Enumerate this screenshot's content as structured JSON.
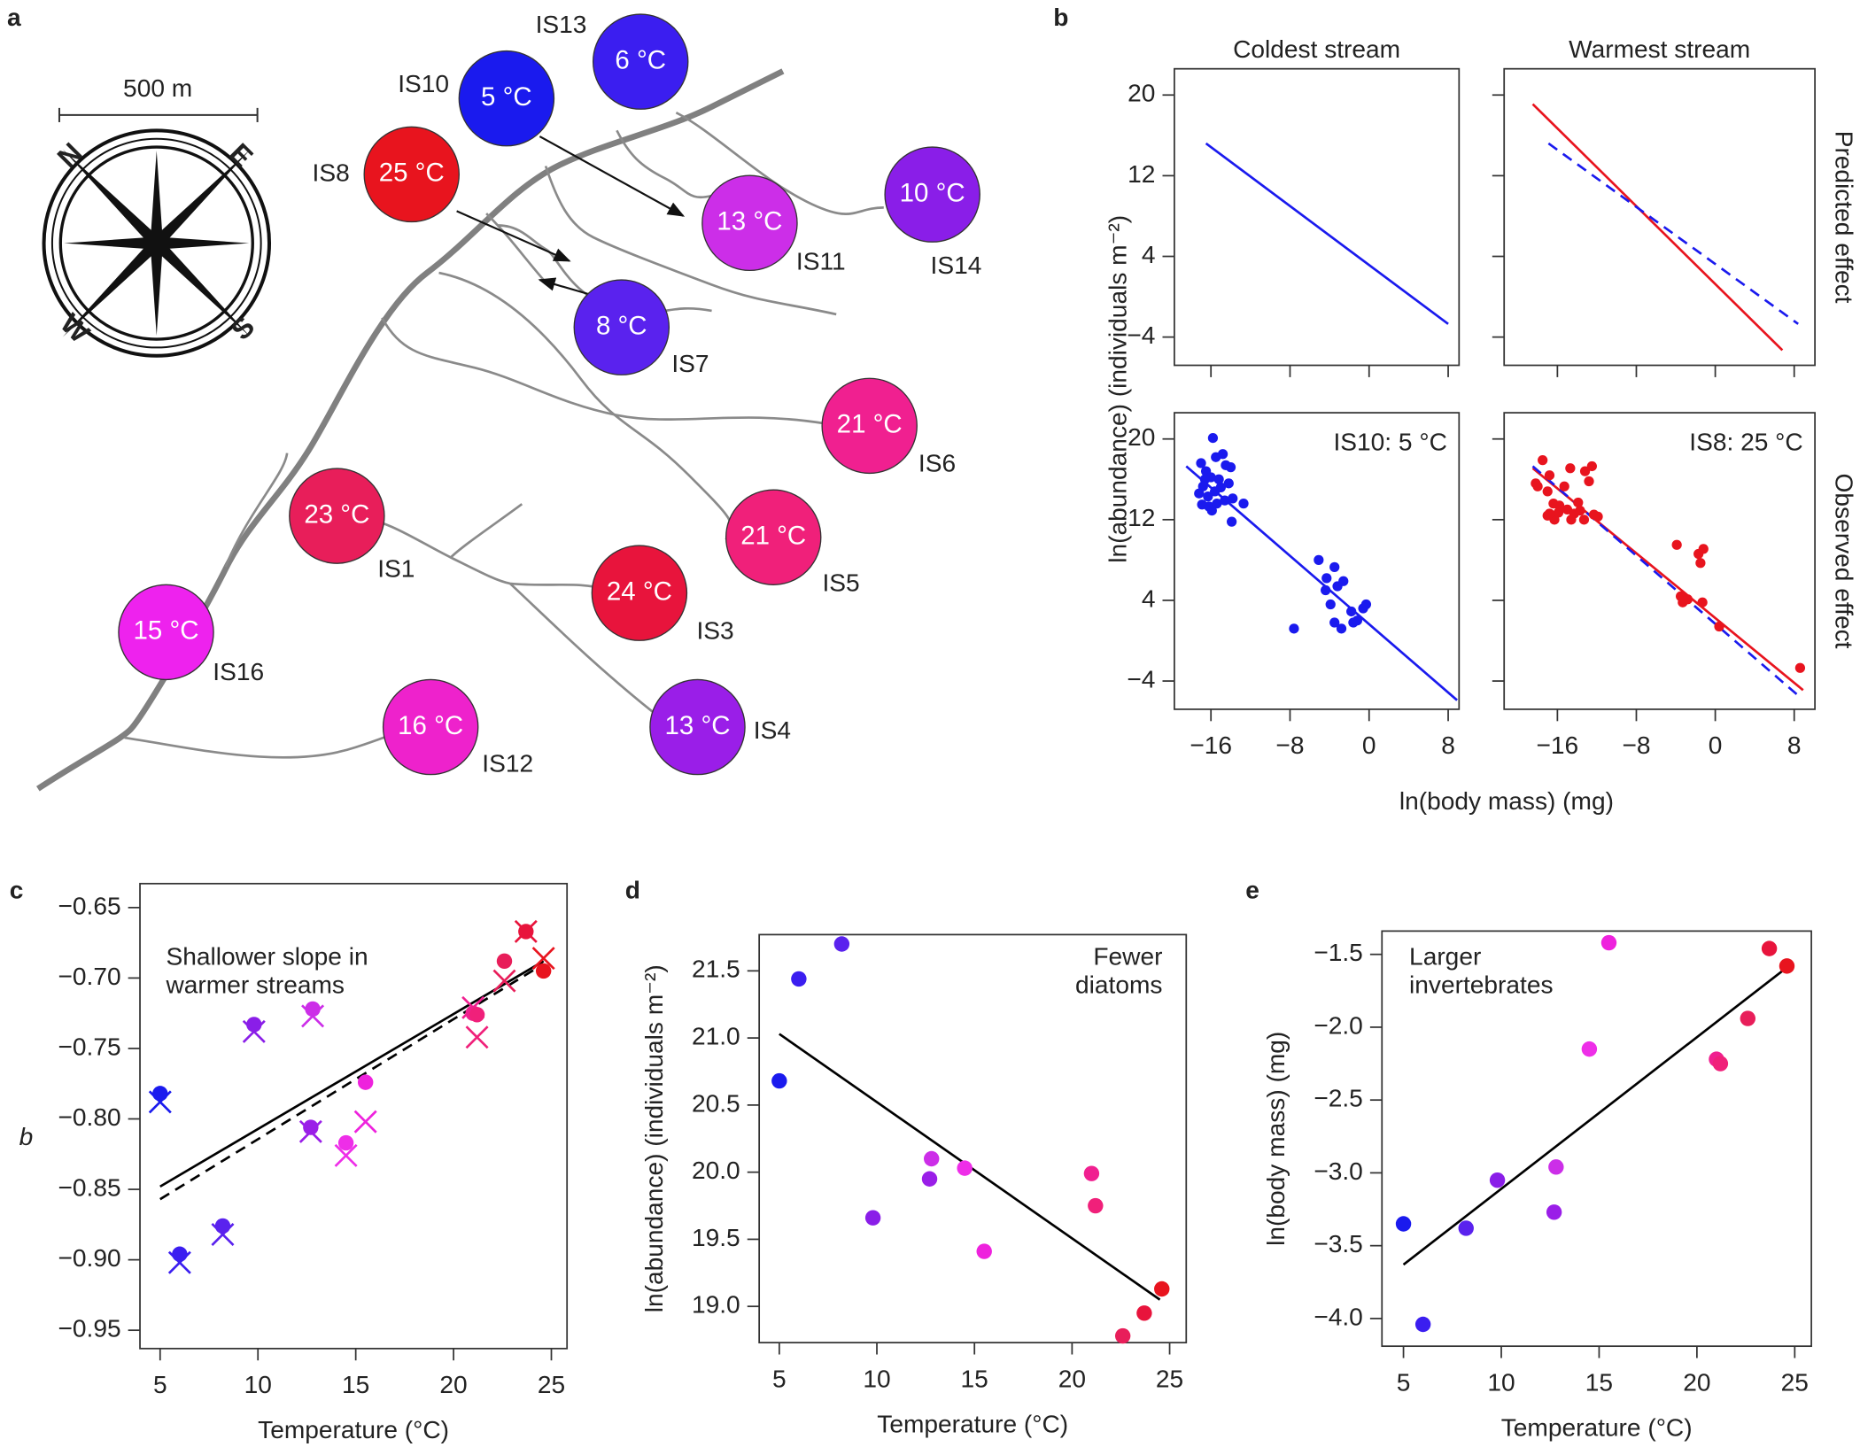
{
  "map": {
    "label": "a",
    "scale_label": "500 m",
    "compass": [
      "N",
      "E",
      "S",
      "W"
    ],
    "sites": [
      {
        "name": "IS13",
        "label": "6 °C",
        "color": "#3b1ef0"
      },
      {
        "name": "IS10",
        "label": "5 °C",
        "color": "#1a1aee"
      },
      {
        "name": "IS8",
        "label": "25 °C",
        "color": "#e8141e"
      },
      {
        "name": "IS11",
        "label": "13 °C",
        "color": "#cc2ee8"
      },
      {
        "name": "IS14",
        "label": "10 °C",
        "color": "#8a1ee8"
      },
      {
        "name": "IS7",
        "label": "8 °C",
        "color": "#5a22ee"
      },
      {
        "name": "IS6",
        "label": "21 °C",
        "color": "#f02090"
      },
      {
        "name": "IS1",
        "label": "23 °C",
        "color": "#e81e5a"
      },
      {
        "name": "IS5",
        "label": "21 °C",
        "color": "#f0207a"
      },
      {
        "name": "IS3",
        "label": "24 °C",
        "color": "#e8143c"
      },
      {
        "name": "IS16",
        "label": "15 °C",
        "color": "#ee22ee"
      },
      {
        "name": "IS4",
        "label": "13 °C",
        "color": "#9a1ee8"
      },
      {
        "name": "IS12",
        "label": "16 °C",
        "color": "#ee22cc"
      }
    ]
  },
  "chart_data": [
    {
      "type": "facet",
      "label": "b",
      "xlabel": "ln(body mass) (mg)",
      "ylabel": "ln(abundance) (individuals m⁻²)",
      "column_titles": [
        "Coldest stream",
        "Warmest stream"
      ],
      "row_titles": [
        "Predicted effect",
        "Observed effect"
      ],
      "ylim": [
        -6.8,
        22.6
      ],
      "yticks": [
        {
          "value": -4,
          "label": "−4"
        },
        4,
        12,
        20
      ],
      "xticks": [
        {
          "value": -16,
          "label": "−16"
        },
        {
          "value": -8,
          "label": "−8"
        },
        0,
        8
      ],
      "panels": [
        {
          "xlim": [
            -19.7,
            9.1
          ],
          "lines": [
            {
              "x": [
                -16.5,
                8
              ],
              "y": [
                15.2,
                -2.7
              ],
              "color": "#1a1aee",
              "dash": false
            }
          ]
        },
        {
          "xlim": [
            -21.4,
            10.1
          ],
          "lines": [
            {
              "x": [
                -18.5,
                6.8
              ],
              "y": [
                19.1,
                -5.3
              ],
              "color": "#e8141e",
              "dash": false
            },
            {
              "x": [
                -16.9,
                8.4
              ],
              "y": [
                15.2,
                -2.7
              ],
              "color": "#1a1aee",
              "dash": true
            }
          ]
        },
        {
          "xlim": [
            -19.7,
            9.1
          ],
          "annotation": "IS10: 5 °C",
          "points": {
            "color": "#1a1aee",
            "x": [
              -15.8,
              -17.0,
              -16.5,
              -16.0,
              -15.5,
              -14.8,
              -14.5,
              -15.2,
              -16.8,
              -17.2,
              -16.3,
              -15.6,
              -15.0,
              -14.2,
              -16.9,
              -16.2,
              -15.4,
              -14.6,
              -13.8,
              -12.7,
              -13.9,
              -15.9,
              -16.6,
              -14.0,
              -7.6,
              -5.1,
              -4.3,
              -3.5,
              -4.4,
              -3.2,
              -2.6,
              -3.9,
              -1.8,
              -3.5,
              -2.8,
              -1.6,
              -0.6,
              -0.3,
              -1.2
            ],
            "y": [
              20.1,
              17.6,
              16.8,
              16.2,
              18.2,
              18.5,
              17.4,
              16.0,
              15.3,
              14.6,
              14.3,
              14.8,
              15.2,
              15.6,
              13.5,
              13.3,
              13.6,
              13.9,
              14.1,
              13.6,
              11.8,
              12.9,
              16.0,
              17.2,
              1.2,
              8.0,
              6.2,
              7.3,
              5.0,
              5.4,
              5.9,
              3.6,
              2.9,
              1.8,
              1.2,
              1.8,
              3.2,
              3.6,
              2.0
            ]
          },
          "lines": [
            {
              "x": [
                -18.5,
                8.9
              ],
              "y": [
                17.3,
                -5.9
              ],
              "color": "#1a1aee",
              "dash": false
            }
          ]
        },
        {
          "xlim": [
            -21.4,
            10.1
          ],
          "annotation": "IS8: 25 °C",
          "points": {
            "color": "#e8141e",
            "x": [
              -18.2,
              -17.5,
              -17.0,
              -18.0,
              -16.8,
              -16.4,
              -17.0,
              -16.3,
              -15.8,
              -15.3,
              -14.7,
              -14.3,
              -15.0,
              -13.9,
              -13.2,
              -12.5,
              -12.3,
              -13.3,
              -11.9,
              -14.6,
              -15.9,
              -12.8,
              -13.7,
              -16.8,
              -3.9,
              -3.5,
              -3.3,
              -2.8,
              -1.7,
              -1.2,
              -1.5,
              -1.3,
              0.4,
              8.6
            ],
            "y": [
              15.6,
              17.9,
              14.8,
              15.3,
              16.4,
              13.6,
              12.4,
              12.0,
              13.4,
              15.3,
              17.1,
              12.6,
              13.0,
              13.7,
              16.8,
              17.3,
              12.5,
              12.0,
              12.3,
              12.0,
              12.7,
              15.8,
              12.9,
              12.6,
              9.5,
              4.4,
              3.8,
              4.1,
              8.6,
              9.1,
              7.7,
              3.8,
              1.4,
              -2.7
            ]
          },
          "lines": [
            {
              "x": [
                -18.5,
                8.9
              ],
              "y": [
                17.1,
                -4.9
              ],
              "color": "#e8141e",
              "dash": false
            },
            {
              "x": [
                -18.5,
                8.6
              ],
              "y": [
                17.3,
                -5.6
              ],
              "color": "#1a1aee",
              "dash": true
            }
          ]
        }
      ]
    },
    {
      "type": "scatter",
      "label": "c",
      "xlabel": "Temperature (°C)",
      "ylabel": "b",
      "annotation": [
        "Shallower slope in",
        "warmer streams"
      ],
      "xlim": [
        3.97,
        25.8
      ],
      "ylim": [
        -0.963,
        -0.633
      ],
      "xticks": [
        5,
        10,
        15,
        20,
        25
      ],
      "yticks": [
        {
          "value": -0.95,
          "label": "−0.95"
        },
        {
          "value": -0.9,
          "label": "−0.90"
        },
        {
          "value": -0.85,
          "label": "−0.85"
        },
        {
          "value": -0.8,
          "label": "−0.80"
        },
        {
          "value": -0.75,
          "label": "−0.75"
        },
        {
          "value": -0.7,
          "label": "−0.70"
        },
        {
          "value": -0.65,
          "label": "−0.65"
        }
      ],
      "points": {
        "x": [
          5,
          6,
          8.2,
          9.8,
          12.8,
          12.7,
          14.5,
          15.5,
          21,
          21.2,
          22.6,
          23.7,
          24.6
        ],
        "y": [
          -0.782,
          -0.896,
          -0.876,
          -0.733,
          -0.722,
          -0.806,
          -0.817,
          -0.774,
          -0.725,
          -0.726,
          -0.688,
          -0.667,
          -0.695
        ],
        "colors": [
          "#1a1aee",
          "#3b1ef0",
          "#5a22ee",
          "#8a1ee8",
          "#cc2ee8",
          "#9a1ee8",
          "#ee2ee8",
          "#ee22dd",
          "#f02090",
          "#f0207a",
          "#e81e5a",
          "#e8143c",
          "#e8141e"
        ]
      },
      "crosses": {
        "x": [
          5,
          6,
          8.2,
          9.8,
          12.8,
          12.7,
          14.5,
          15.5,
          21,
          21.2,
          22.6,
          23.7,
          24.6
        ],
        "y": [
          -0.788,
          -0.902,
          -0.882,
          -0.738,
          -0.727,
          -0.809,
          -0.826,
          -0.802,
          -0.721,
          -0.742,
          -0.702,
          -0.667,
          -0.686
        ],
        "colors": [
          "#1a1aee",
          "#3b1ef0",
          "#5a22ee",
          "#8a1ee8",
          "#cc2ee8",
          "#9a1ee8",
          "#ee2ee8",
          "#ee22dd",
          "#f02090",
          "#f0207a",
          "#e81e5a",
          "#e8143c",
          "#e8141e"
        ]
      },
      "lines": [
        {
          "x": [
            5,
            24.6
          ],
          "y": [
            -0.848,
            -0.688
          ],
          "color": "#000000",
          "dash": false
        },
        {
          "x": [
            5,
            24.6
          ],
          "y": [
            -0.857,
            -0.69
          ],
          "color": "#000000",
          "dash": true
        }
      ]
    },
    {
      "type": "scatter",
      "label": "d",
      "xlabel": "Temperature (°C)",
      "ylabel": "ln(abundance) (individuals m⁻²)",
      "annotation": [
        "Fewer",
        "diatoms"
      ],
      "xlim": [
        3.97,
        25.85
      ],
      "ylim": [
        18.73,
        21.77
      ],
      "xticks": [
        5,
        10,
        15,
        20,
        25
      ],
      "yticks": [
        {
          "value": 19,
          "label": "19.0"
        },
        19.5,
        {
          "value": 20,
          "label": "20.0"
        },
        20.5,
        {
          "value": 21,
          "label": "21.0"
        },
        21.5
      ],
      "points": {
        "x": [
          5,
          6,
          8.2,
          9.8,
          12.8,
          12.7,
          14.5,
          15.5,
          21,
          21.2,
          22.6,
          23.7,
          24.6
        ],
        "y": [
          20.68,
          21.44,
          21.7,
          19.66,
          20.1,
          19.95,
          20.03,
          19.41,
          19.99,
          19.75,
          18.78,
          18.95,
          19.13
        ],
        "colors": [
          "#1a1aee",
          "#3b1ef0",
          "#5a22ee",
          "#8a1ee8",
          "#cc2ee8",
          "#9a1ee8",
          "#ee2ee8",
          "#ee22dd",
          "#f02090",
          "#f0207a",
          "#e81e5a",
          "#e8143c",
          "#e8141e"
        ]
      },
      "lines": [
        {
          "x": [
            5,
            24.5
          ],
          "y": [
            21.03,
            19.05
          ],
          "color": "#000000",
          "dash": false
        }
      ]
    },
    {
      "type": "scatter",
      "label": "e",
      "xlabel": "Temperature (°C)",
      "ylabel": "ln(body mass) (mg)",
      "annotation": [
        "Larger",
        "invertebrates"
      ],
      "xlim": [
        3.9,
        25.85
      ],
      "ylim": [
        -4.19,
        -1.34
      ],
      "xticks": [
        5,
        10,
        15,
        20,
        25
      ],
      "yticks": [
        {
          "value": -4,
          "label": "−4.0"
        },
        {
          "value": -3.5,
          "label": "−3.5"
        },
        {
          "value": -3,
          "label": "−3.0"
        },
        {
          "value": -2.5,
          "label": "−2.5"
        },
        {
          "value": -2,
          "label": "−2.0"
        },
        {
          "value": -1.5,
          "label": "−1.5"
        }
      ],
      "points": {
        "x": [
          5,
          6,
          8.2,
          9.8,
          12.8,
          12.7,
          14.5,
          15.5,
          21,
          21.2,
          22.6,
          23.7,
          24.6
        ],
        "y": [
          -3.35,
          -4.04,
          -3.38,
          -3.05,
          -2.96,
          -3.27,
          -2.15,
          -1.42,
          -2.22,
          -2.25,
          -1.94,
          -1.46,
          -1.58
        ],
        "colors": [
          "#1a1aee",
          "#3b1ef0",
          "#5a22ee",
          "#8a1ee8",
          "#cc2ee8",
          "#9a1ee8",
          "#ee2ee8",
          "#ee22dd",
          "#f02090",
          "#f0207a",
          "#e81e5a",
          "#e8143c",
          "#e8141e"
        ]
      },
      "lines": [
        {
          "x": [
            5,
            24.5
          ],
          "y": [
            -3.63,
            -1.6
          ],
          "color": "#000000",
          "dash": false
        }
      ]
    }
  ]
}
